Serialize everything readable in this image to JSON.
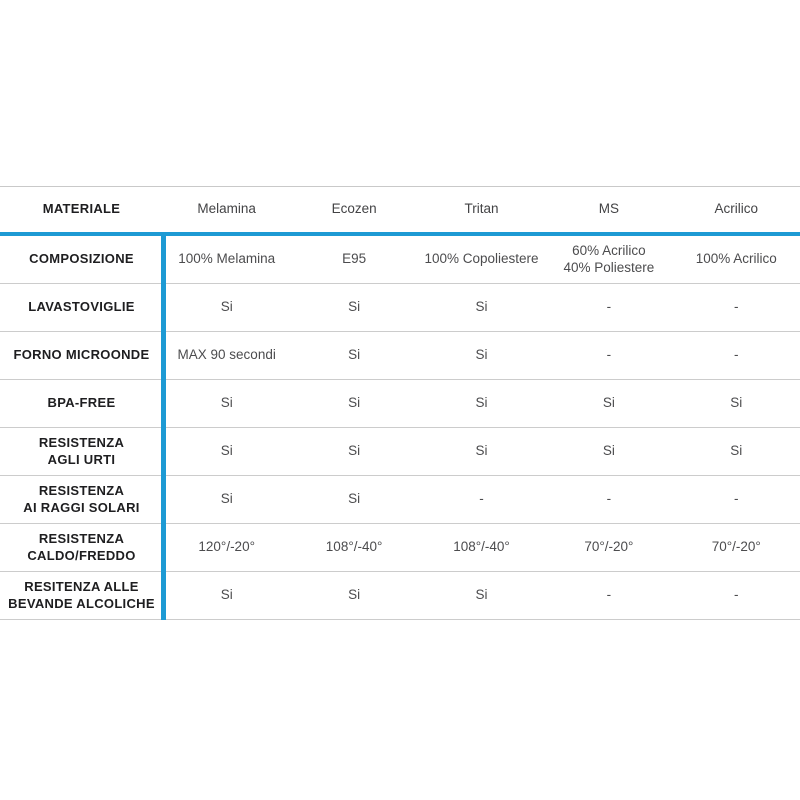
{
  "style": {
    "accent_color": "#1d9ad4",
    "border_color": "#cccccc",
    "label_color": "#1e1e20",
    "value_color": "#4c4c4e",
    "background": "#ffffff"
  },
  "chart_data": {
    "type": "table",
    "title": "",
    "header_label": "MATERIALE",
    "columns": [
      "Melamina",
      "Ecozen",
      "Tritan",
      "MS",
      "Acrilico"
    ],
    "rows": [
      {
        "label": "COMPOSIZIONE",
        "values": [
          "100% Melamina",
          "E95",
          "100% Copoliestere",
          "60% Acrilico\n40% Poliestere",
          "100% Acrilico"
        ]
      },
      {
        "label": "LAVASTOVIGLIE",
        "values": [
          "Si",
          "Si",
          "Si",
          "-",
          "-"
        ]
      },
      {
        "label": "FORNO MICROONDE",
        "values": [
          "MAX 90 secondi",
          "Si",
          "Si",
          "-",
          "-"
        ]
      },
      {
        "label": "BPA-FREE",
        "values": [
          "Si",
          "Si",
          "Si",
          "Si",
          "Si"
        ]
      },
      {
        "label": "RESISTENZA\nAGLI URTI",
        "values": [
          "Si",
          "Si",
          "Si",
          "Si",
          "Si"
        ]
      },
      {
        "label": "RESISTENZA\nAI RAGGI SOLARI",
        "values": [
          "Si",
          "Si",
          "-",
          "-",
          "-"
        ]
      },
      {
        "label": "RESISTENZA\nCALDO/FREDDO",
        "values": [
          "120°/-20°",
          "108°/-40°",
          "108°/-40°",
          "70°/-20°",
          "70°/-20°"
        ]
      },
      {
        "label": "RESITENZA ALLE\nBEVANDE ALCOLICHE",
        "values": [
          "Si",
          "Si",
          "Si",
          "-",
          "-"
        ]
      }
    ]
  }
}
